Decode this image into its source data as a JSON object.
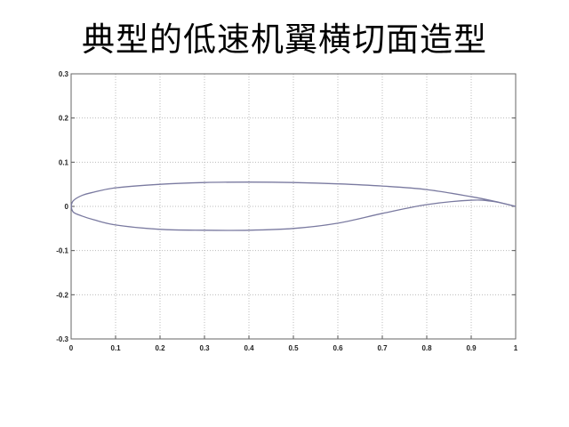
{
  "title": "典型的低速机翼横切面造型",
  "chart_data": {
    "type": "line",
    "title": "典型的低速机翼横切面造型",
    "xlabel": "",
    "ylabel": "",
    "xlim": [
      0,
      1
    ],
    "ylim": [
      -0.3,
      0.3
    ],
    "grid": true,
    "x_ticks": [
      "0",
      "0.1",
      "0.2",
      "0.3",
      "0.4",
      "0.5",
      "0.6",
      "0.7",
      "0.8",
      "0.9",
      "1"
    ],
    "y_ticks": [
      "0.3",
      "0.2",
      "0.1",
      "0",
      "-0.1",
      "-0.2",
      "-0.3"
    ],
    "line_color": "#7a7aa0",
    "series": [
      {
        "x": [
          0,
          0.005,
          0.025,
          0.05,
          0.1,
          0.2,
          0.3,
          0.4,
          0.5,
          0.6,
          0.7,
          0.8,
          0.9,
          0.95,
          1
        ],
        "y": [
          0,
          0.013,
          0.025,
          0.032,
          0.042,
          0.05,
          0.054,
          0.055,
          0.054,
          0.051,
          0.046,
          0.038,
          0.022,
          0.012,
          0
        ]
      },
      {
        "x": [
          0,
          0.005,
          0.025,
          0.05,
          0.1,
          0.2,
          0.3,
          0.4,
          0.5,
          0.6,
          0.7,
          0.8,
          0.9,
          0.95,
          1
        ],
        "y": [
          0,
          -0.013,
          -0.022,
          -0.03,
          -0.042,
          -0.052,
          -0.054,
          -0.054,
          -0.05,
          -0.038,
          -0.016,
          0.004,
          0.014,
          0.011,
          0
        ]
      }
    ]
  }
}
